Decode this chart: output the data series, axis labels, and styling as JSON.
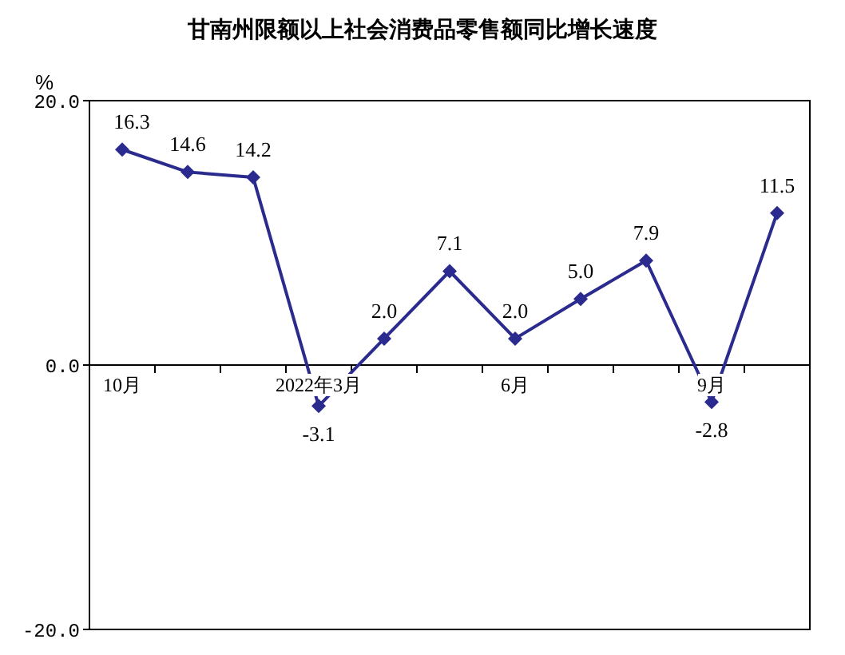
{
  "chart_data": {
    "type": "line",
    "title": "甘南州限额以上社会消费品零售额同比增长速度",
    "ylabel": "%",
    "categories": [
      "10月",
      null,
      null,
      "2022年3月",
      null,
      null,
      "6月",
      null,
      null,
      "9月",
      null
    ],
    "series": [
      {
        "color": "#2b2b8f",
        "values": [
          16.3,
          14.6,
          14.2,
          -3.1,
          2.0,
          7.1,
          2.0,
          5.0,
          7.9,
          -2.8,
          11.5
        ],
        "value_labels": [
          "16.3",
          "14.6",
          "14.2",
          "-3.1",
          "2.0",
          "7.1",
          "2.0",
          "5.0",
          "7.9",
          "-2.8",
          "11.5"
        ]
      }
    ],
    "ylim": [
      -20,
      20
    ],
    "yticks": [
      {
        "value": -20,
        "label": "-20.0"
      },
      {
        "value": 0,
        "label": "0.0"
      },
      {
        "value": 20,
        "label": "20.0"
      }
    ],
    "marker": "diamond",
    "line_style": "solid",
    "grid": false,
    "legend": false
  }
}
